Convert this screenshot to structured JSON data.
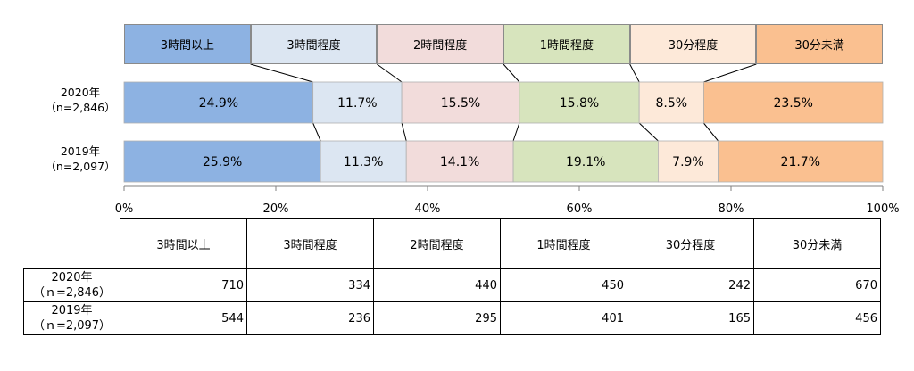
{
  "chart_data": {
    "type": "bar",
    "orientation": "horizontal",
    "stacked": "percent",
    "categories": [
      "3時間以上",
      "3時間程度",
      "2時間程度",
      "1時間程度",
      "30分程度",
      "30分未満"
    ],
    "colors": [
      "#8db2e2",
      "#dce6f2",
      "#f2dcdb",
      "#d7e4bd",
      "#fde9d9",
      "#fac090"
    ],
    "rows": [
      {
        "label_line1": "2020年",
        "label_line2": "（n=2,846）",
        "values": [
          24.9,
          11.7,
          15.5,
          15.8,
          8.5,
          23.5
        ],
        "value_labels": [
          "24.9%",
          "11.7%",
          "15.5%",
          "15.8%",
          "8.5%",
          "23.5%"
        ]
      },
      {
        "label_line1": "2019年",
        "label_line2": "（n=2,097）",
        "values": [
          25.9,
          11.3,
          14.1,
          19.1,
          7.9,
          21.7
        ],
        "value_labels": [
          "25.9%",
          "11.3%",
          "14.1%",
          "19.1%",
          "7.9%",
          "21.7%"
        ]
      }
    ],
    "x_ticks": [
      "0%",
      "20%",
      "40%",
      "60%",
      "80%",
      "100%"
    ],
    "xlim": [
      0,
      100
    ],
    "legend_position": "top"
  },
  "table": {
    "headers": [
      "3時間以上",
      "3時間程度",
      "2時間程度",
      "1時間程度",
      "30分程度",
      "30分未満"
    ],
    "rows": [
      {
        "label_line1": "2020年",
        "label_line2": "（ｎ=2,846）",
        "values": [
          "710",
          "334",
          "440",
          "450",
          "242",
          "670"
        ]
      },
      {
        "label_line1": "2019年",
        "label_line2": "（ｎ=2,097）",
        "values": [
          "544",
          "236",
          "295",
          "401",
          "165",
          "456"
        ]
      }
    ]
  }
}
